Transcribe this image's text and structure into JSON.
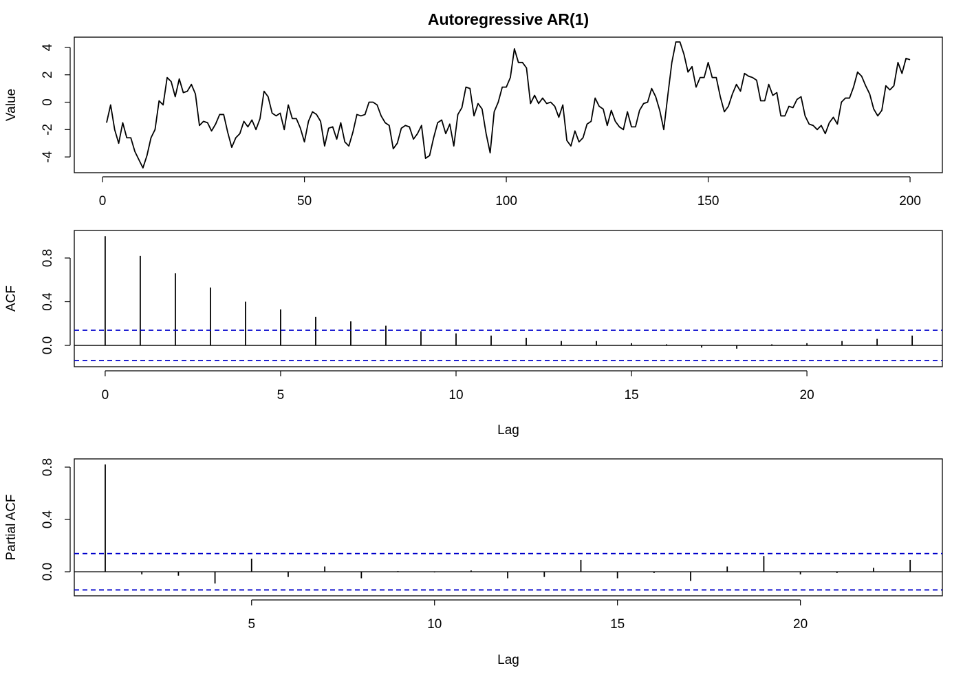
{
  "chart_data": [
    {
      "type": "line",
      "title": "Autoregressive AR(1)",
      "y_label": "Value",
      "color": "#000000",
      "x": [
        1,
        2,
        3,
        4,
        5,
        6,
        7,
        8,
        9,
        10,
        11,
        12,
        13,
        14,
        15,
        16,
        17,
        18,
        19,
        20,
        21,
        22,
        23,
        24,
        25,
        26,
        27,
        28,
        29,
        30,
        31,
        32,
        33,
        34,
        35,
        36,
        37,
        38,
        39,
        40,
        41,
        42,
        43,
        44,
        45,
        46,
        47,
        48,
        49,
        50,
        51,
        52,
        53,
        54,
        55,
        56,
        57,
        58,
        59,
        60,
        61,
        62,
        63,
        64,
        65,
        66,
        67,
        68,
        69,
        70,
        71,
        72,
        73,
        74,
        75,
        76,
        77,
        78,
        79,
        80,
        81,
        82,
        83,
        84,
        85,
        86,
        87,
        88,
        89,
        90,
        91,
        92,
        93,
        94,
        95,
        96,
        97,
        98,
        99,
        100,
        101,
        102,
        103,
        104,
        105,
        106,
        107,
        108,
        109,
        110,
        111,
        112,
        113,
        114,
        115,
        116,
        117,
        118,
        119,
        120,
        121,
        122,
        123,
        124,
        125,
        126,
        127,
        128,
        129,
        130,
        131,
        132,
        133,
        134,
        135,
        136,
        137,
        138,
        139,
        140,
        141,
        142,
        143,
        144,
        145,
        146,
        147,
        148,
        149,
        150,
        151,
        152,
        153,
        154,
        155,
        156,
        157,
        158,
        159,
        160,
        161,
        162,
        163,
        164,
        165,
        166,
        167,
        168,
        169,
        170,
        171,
        172,
        173,
        174,
        175,
        176,
        177,
        178,
        179,
        180,
        181,
        182,
        183,
        184,
        185,
        186,
        187,
        188,
        189,
        190,
        191,
        192,
        193,
        194,
        195,
        196,
        197,
        198,
        199,
        200
      ],
      "values": [
        -1.5,
        -0.2,
        -2.0,
        -3.0,
        -1.5,
        -2.6,
        -2.6,
        -3.6,
        -4.2,
        -4.8,
        -3.9,
        -2.6,
        -2.0,
        0.1,
        -0.2,
        1.8,
        1.5,
        0.4,
        1.7,
        0.7,
        0.8,
        1.3,
        0.6,
        -1.7,
        -1.4,
        -1.5,
        -2.1,
        -1.6,
        -0.9,
        -0.9,
        -2.2,
        -3.3,
        -2.6,
        -2.3,
        -1.4,
        -1.8,
        -1.3,
        -2.0,
        -1.2,
        0.8,
        0.4,
        -0.8,
        -1.0,
        -0.8,
        -2.0,
        -0.2,
        -1.2,
        -1.2,
        -1.9,
        -2.9,
        -1.4,
        -0.7,
        -0.9,
        -1.4,
        -3.2,
        -1.9,
        -1.8,
        -2.7,
        -1.5,
        -2.9,
        -3.2,
        -2.2,
        -0.9,
        -1.0,
        -0.9,
        0.0,
        0.0,
        -0.2,
        -1.0,
        -1.5,
        -1.7,
        -3.4,
        -3.0,
        -1.9,
        -1.7,
        -1.8,
        -2.7,
        -2.3,
        -1.7,
        -4.1,
        -3.9,
        -2.6,
        -1.5,
        -1.3,
        -2.3,
        -1.6,
        -3.2,
        -0.9,
        -0.4,
        1.1,
        1.0,
        -1.0,
        -0.1,
        -0.5,
        -2.3,
        -3.7,
        -0.7,
        0.0,
        1.1,
        1.1,
        1.8,
        3.9,
        2.9,
        2.9,
        2.5,
        -0.1,
        0.5,
        -0.1,
        0.3,
        -0.1,
        0.0,
        -0.3,
        -1.1,
        -0.2,
        -2.8,
        -3.2,
        -2.1,
        -2.9,
        -2.6,
        -1.6,
        -1.4,
        0.3,
        -0.3,
        -0.5,
        -1.7,
        -0.6,
        -1.4,
        -1.8,
        -2.0,
        -0.7,
        -1.8,
        -1.8,
        -0.6,
        -0.1,
        0.0,
        1.0,
        0.4,
        -0.6,
        -2.0,
        0.5,
        2.9,
        4.4,
        4.4,
        3.5,
        2.2,
        2.6,
        1.1,
        1.8,
        1.8,
        2.9,
        1.8,
        1.8,
        0.4,
        -0.7,
        -0.3,
        0.6,
        1.3,
        0.8,
        2.1,
        1.9,
        1.8,
        1.6,
        0.1,
        0.1,
        1.3,
        0.5,
        0.7,
        -1.0,
        -1.0,
        -0.3,
        -0.4,
        0.2,
        0.4,
        -1.0,
        -1.6,
        -1.7,
        -2.0,
        -1.7,
        -2.3,
        -1.5,
        -1.1,
        -1.6,
        0.0,
        0.3,
        0.3,
        1.1,
        2.2,
        1.9,
        1.2,
        0.6,
        -0.5,
        -1.0,
        -0.6,
        1.2,
        0.9,
        1.2,
        2.9,
        2.1,
        3.2,
        3.1
      ],
      "xlim": [
        -7,
        208
      ],
      "xticks": [
        0,
        50,
        100,
        150,
        200
      ],
      "ylim": [
        -5.15,
        4.75
      ],
      "yticks": [
        -4,
        -2,
        0,
        2,
        4
      ]
    },
    {
      "type": "bar",
      "x_label": "Lag",
      "y_label": "ACF",
      "color": "#000000",
      "ci_color": "#0000cc",
      "x": [
        0,
        1,
        2,
        3,
        4,
        5,
        6,
        7,
        8,
        9,
        10,
        11,
        12,
        13,
        14,
        15,
        16,
        17,
        18,
        19,
        20,
        21,
        22,
        23
      ],
      "values": [
        1.0,
        0.82,
        0.66,
        0.53,
        0.4,
        0.33,
        0.26,
        0.22,
        0.18,
        0.13,
        0.11,
        0.09,
        0.07,
        0.04,
        0.04,
        0.02,
        0.01,
        -0.02,
        -0.03,
        0.01,
        0.02,
        0.04,
        0.06,
        0.09
      ],
      "ci": 0.139,
      "xlim": [
        -0.88,
        23.86
      ],
      "xticks": [
        0,
        5,
        10,
        15,
        20
      ],
      "ylim": [
        -0.195,
        1.052
      ],
      "yticks": [
        {
          "value": 0,
          "label": "0.0"
        },
        0.4,
        0.8
      ]
    },
    {
      "type": "bar",
      "x_label": "Lag",
      "y_label": "Partial ACF",
      "color": "#000000",
      "ci_color": "#0000cc",
      "x": [
        1,
        2,
        3,
        4,
        5,
        6,
        7,
        8,
        9,
        10,
        11,
        12,
        13,
        14,
        15,
        16,
        17,
        18,
        19,
        20,
        21,
        22,
        23
      ],
      "values": [
        0.82,
        -0.02,
        -0.03,
        -0.09,
        0.1,
        -0.04,
        0.04,
        -0.05,
        0.005,
        -0.005,
        0.01,
        -0.05,
        -0.04,
        0.09,
        -0.05,
        -0.01,
        -0.07,
        0.04,
        0.12,
        -0.02,
        -0.01,
        0.03,
        0.09
      ],
      "ci": 0.139,
      "xlim": [
        0.154,
        23.88
      ],
      "xticks": [
        5,
        10,
        15,
        20
      ],
      "ylim": [
        -0.184,
        0.863
      ],
      "yticks": [
        {
          "value": 0,
          "label": "0.0"
        },
        0.4,
        0.8
      ]
    }
  ]
}
